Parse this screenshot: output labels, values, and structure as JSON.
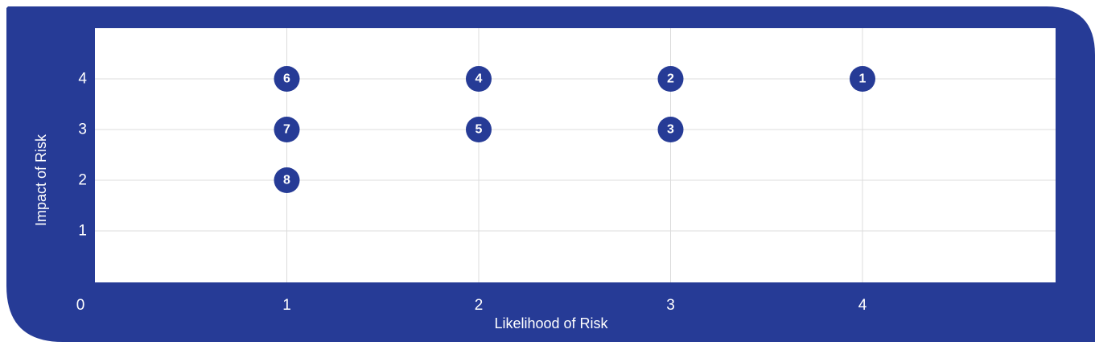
{
  "chart_data": {
    "type": "scatter",
    "title": "",
    "xlabel": "Likelihood of Risk",
    "ylabel": "Impact of Risk",
    "xlim": [
      0,
      5
    ],
    "ylim": [
      0,
      5
    ],
    "x_ticks": [
      1,
      2,
      3,
      4
    ],
    "y_ticks": [
      1,
      2,
      3,
      4
    ],
    "origin_label": "0",
    "grid": true,
    "points": [
      {
        "label": "1",
        "x": 4,
        "y": 4
      },
      {
        "label": "2",
        "x": 3,
        "y": 4
      },
      {
        "label": "3",
        "x": 3,
        "y": 3
      },
      {
        "label": "4",
        "x": 2,
        "y": 4
      },
      {
        "label": "5",
        "x": 2,
        "y": 3
      },
      {
        "label": "6",
        "x": 1,
        "y": 4
      },
      {
        "label": "7",
        "x": 1,
        "y": 3
      },
      {
        "label": "8",
        "x": 1,
        "y": 2
      }
    ],
    "colors": {
      "frame": "#263b96",
      "plot_background": "#ffffff",
      "marker": "#263b96",
      "marker_text": "#ffffff",
      "grid": "#dcdcdc"
    }
  }
}
